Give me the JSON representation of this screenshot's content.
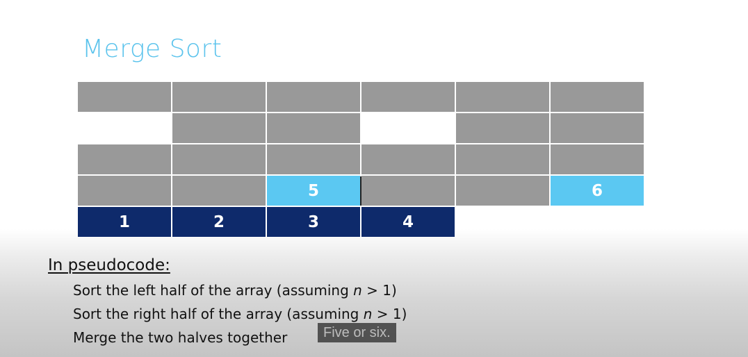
{
  "title": "Merge Sort",
  "grid": {
    "columns": 6,
    "rows": [
      {
        "cells": [
          {
            "kind": "gray",
            "label": ""
          },
          {
            "kind": "gray",
            "label": ""
          },
          {
            "kind": "gray",
            "label": ""
          },
          {
            "kind": "gray",
            "label": ""
          },
          {
            "kind": "gray",
            "label": ""
          },
          {
            "kind": "gray",
            "label": ""
          }
        ]
      },
      {
        "cells": [
          {
            "kind": "empty",
            "label": ""
          },
          {
            "kind": "gray",
            "label": ""
          },
          {
            "kind": "gray",
            "label": ""
          },
          {
            "kind": "empty",
            "label": ""
          },
          {
            "kind": "gray",
            "label": ""
          },
          {
            "kind": "gray",
            "label": ""
          }
        ]
      },
      {
        "cells": [
          {
            "kind": "gray",
            "label": ""
          },
          {
            "kind": "gray",
            "label": ""
          },
          {
            "kind": "gray",
            "label": ""
          },
          {
            "kind": "gray",
            "label": ""
          },
          {
            "kind": "gray",
            "label": ""
          },
          {
            "kind": "gray",
            "label": ""
          }
        ]
      },
      {
        "cells": [
          {
            "kind": "gray",
            "label": ""
          },
          {
            "kind": "gray",
            "label": ""
          },
          {
            "kind": "light",
            "label": "5"
          },
          {
            "kind": "gray",
            "label": ""
          },
          {
            "kind": "gray",
            "label": ""
          },
          {
            "kind": "light",
            "label": "6"
          }
        ]
      },
      {
        "cells": [
          {
            "kind": "dark",
            "label": "1"
          },
          {
            "kind": "dark",
            "label": "2"
          },
          {
            "kind": "dark",
            "label": "3"
          },
          {
            "kind": "dark",
            "label": "4"
          },
          {
            "kind": "empty",
            "label": ""
          },
          {
            "kind": "empty",
            "label": ""
          }
        ]
      }
    ]
  },
  "colors": {
    "title": "#5bc3ec",
    "gray_cell": "#999999",
    "light_cell": "#5bc8f2",
    "dark_cell": "#0e2a6b"
  },
  "pseudocode": {
    "heading": "In pseudocode:",
    "lines": [
      {
        "before": "Sort the left half of the array (assuming ",
        "var": "n",
        "after": " > 1)"
      },
      {
        "before": "Sort the right half of the array (assuming ",
        "var": "n",
        "after": " > 1)"
      },
      {
        "before": "Merge the two halves together",
        "var": "",
        "after": ""
      }
    ]
  },
  "caption": "Five or six."
}
